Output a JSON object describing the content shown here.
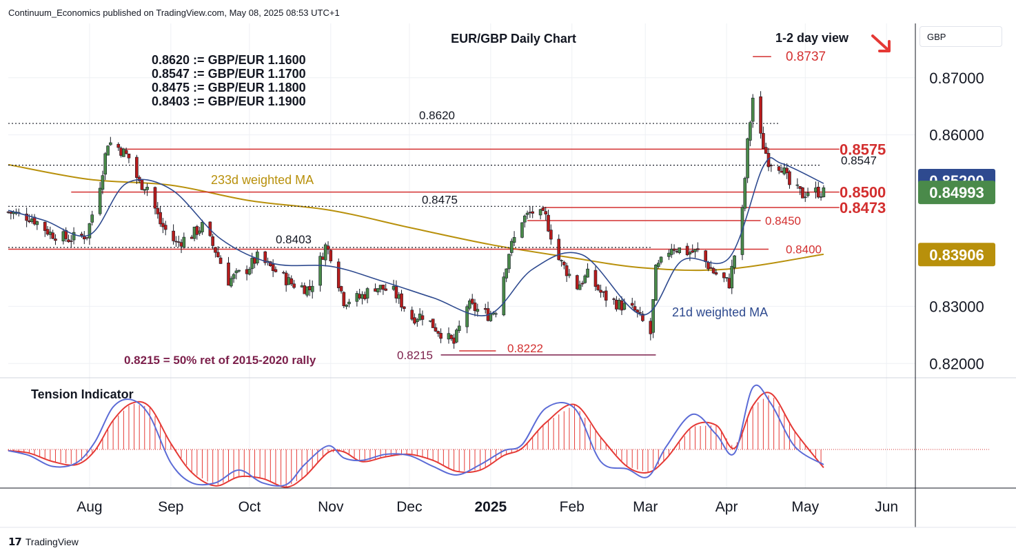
{
  "header": {
    "publisher_line": "Continuum_Economics published on TradingView.com, May 08, 2025 08:53 UTC+1"
  },
  "toolbar": {
    "currency_button": "GBP"
  },
  "footer": {
    "brand": "TradingView"
  },
  "colors": {
    "up_candle": "#4a8a4a",
    "down_candle": "#b71c1c",
    "ma21": "#2e4a8f",
    "ma233": "#b8900b",
    "support_resistance": "#d32f2f",
    "fib_line": "#7b1e4a",
    "tension_main": "#5b6bd6",
    "tension_signal": "#e53935"
  },
  "chart_data": [
    {
      "type": "candlestick",
      "title": "EUR/GBP Daily Chart",
      "view_label": "1-2 day view",
      "view_arrow": "down-right-arrow",
      "price_axis_unit": "GBP",
      "price_ticks": [
        "0.87000",
        "0.86000",
        "0.85200",
        "0.84993",
        "0.83906",
        "0.83000",
        "0.82000"
      ],
      "price_tick_values": [
        0.87,
        0.86,
        0.852,
        0.84993,
        0.83906,
        0.83,
        0.82
      ],
      "ylim": [
        0.8175,
        0.8795
      ],
      "time_ticks": [
        "Aug",
        "Sep",
        "Oct",
        "Nov",
        "Dec",
        "2025",
        "Feb",
        "Mar",
        "Apr",
        "May",
        "Jun"
      ],
      "time_range": [
        "2024-07-01",
        "2025-06-12"
      ],
      "price_badges": [
        {
          "label": "0.85200",
          "value": 0.852,
          "color": "#2e4a8f",
          "text_color": "#ffffff"
        },
        {
          "label": "0.84993",
          "value": 0.84993,
          "color": "#4a8a4a",
          "text_color": "#ffffff"
        },
        {
          "label": "0.83906",
          "value": 0.83906,
          "color": "#b8900b",
          "text_color": "#ffffff"
        }
      ],
      "conversions": [
        "0.8620 := GBP/EUR 1.1600",
        "0.8547 := GBP/EUR 1.1700",
        "0.8475 := GBP/EUR 1.1800",
        "0.8403 := GBP/EUR 1.1900"
      ],
      "levels": [
        {
          "label": "0.8620",
          "value": 0.862,
          "style": "dotted",
          "from": "2024-07-01",
          "to": "2025-04-21"
        },
        {
          "label": "0.8547",
          "value": 0.8547,
          "style": "dotted",
          "from": "2024-07-01",
          "to": "2025-05-07"
        },
        {
          "label": "0.8475",
          "value": 0.8475,
          "style": "dotted",
          "from": "2024-07-01",
          "to": "2025-01-21"
        },
        {
          "label": "0.8403",
          "value": 0.8403,
          "style": "dotted",
          "from": "2024-07-01",
          "to": "2025-03-03"
        },
        {
          "label": "0.8575",
          "value": 0.8575,
          "style": "solid",
          "from": "2024-08-14",
          "to": "2025-05-14"
        },
        {
          "label": "0.8500",
          "value": 0.85,
          "style": "solid",
          "from": "2024-07-25",
          "to": "2025-05-14"
        },
        {
          "label": "0.8473",
          "value": 0.8473,
          "style": "solid",
          "from": "2025-01-21",
          "to": "2025-05-14"
        },
        {
          "label": "0.8450",
          "value": 0.845,
          "style": "solid",
          "from": "2025-01-15",
          "to": "2025-04-14"
        },
        {
          "label": "0.8400",
          "value": 0.84,
          "style": "solid",
          "from": "2024-07-01",
          "to": "2025-04-17"
        },
        {
          "label": "0.8737",
          "value": 0.8737,
          "style": "solid",
          "from": "2025-04-11",
          "to": "2025-04-18"
        },
        {
          "label": "0.8222",
          "value": 0.8222,
          "style": "solid",
          "from": "2024-12-20",
          "to": "2025-01-03"
        },
        {
          "label": "0.8215",
          "value": 0.8215,
          "style": "fib",
          "from": "2024-12-13",
          "to": "2025-03-05"
        }
      ],
      "annotations": {
        "ma233_label": "233d weighted MA",
        "ma21_label": "21d weighted MA",
        "fib_note": "0.8215 = 50% ret of 2015-2020 rally"
      },
      "price_path_dates": [
        "2024-07-01",
        "2024-07-10",
        "2024-07-17",
        "2024-07-24",
        "2024-07-31",
        "2024-08-05",
        "2024-08-08",
        "2024-08-12",
        "2024-08-16",
        "2024-08-20",
        "2024-08-23",
        "2024-08-28",
        "2024-09-03",
        "2024-09-09",
        "2024-09-13",
        "2024-09-18",
        "2024-09-23",
        "2024-09-30",
        "2024-10-04",
        "2024-10-10",
        "2024-10-17",
        "2024-10-24",
        "2024-10-30",
        "2024-11-01",
        "2024-11-06",
        "2024-11-12",
        "2024-11-18",
        "2024-11-25",
        "2024-12-02",
        "2024-12-06",
        "2024-12-12",
        "2024-12-18",
        "2024-12-23",
        "2024-12-31",
        "2025-01-03",
        "2025-01-08",
        "2025-01-13",
        "2025-01-17",
        "2025-01-22",
        "2025-01-27",
        "2025-02-03",
        "2025-02-07",
        "2025-02-13",
        "2025-02-19",
        "2025-02-25",
        "2025-03-03",
        "2025-03-05",
        "2025-03-11",
        "2025-03-17",
        "2025-03-21",
        "2025-03-27",
        "2025-04-02",
        "2025-04-07",
        "2025-04-09",
        "2025-04-11",
        "2025-04-14",
        "2025-04-17",
        "2025-04-22",
        "2025-04-25",
        "2025-04-30",
        "2025-05-02",
        "2025-05-08"
      ],
      "price_path_values": [
        0.8465,
        0.8455,
        0.8428,
        0.8418,
        0.8425,
        0.8515,
        0.8588,
        0.8578,
        0.856,
        0.8515,
        0.851,
        0.8445,
        0.841,
        0.8425,
        0.844,
        0.8398,
        0.8345,
        0.8365,
        0.8385,
        0.8365,
        0.834,
        0.833,
        0.8405,
        0.839,
        0.831,
        0.8315,
        0.8335,
        0.8325,
        0.828,
        0.8285,
        0.8258,
        0.8235,
        0.8302,
        0.8285,
        0.8295,
        0.8395,
        0.8452,
        0.8465,
        0.8455,
        0.8382,
        0.8335,
        0.8355,
        0.8318,
        0.8303,
        0.8292,
        0.8252,
        0.8362,
        0.8405,
        0.8395,
        0.8395,
        0.836,
        0.834,
        0.8465,
        0.8585,
        0.8665,
        0.8595,
        0.8555,
        0.8545,
        0.8512,
        0.8495,
        0.8502,
        0.8499
      ],
      "ma21_dates": [
        "2024-07-01",
        "2024-07-15",
        "2024-08-01",
        "2024-08-15",
        "2024-09-01",
        "2024-09-20",
        "2024-10-10",
        "2024-11-01",
        "2024-11-20",
        "2024-12-10",
        "2024-12-31",
        "2025-01-17",
        "2025-02-05",
        "2025-02-28",
        "2025-03-15",
        "2025-04-02",
        "2025-04-15",
        "2025-04-22",
        "2025-05-08"
      ],
      "ma21_values": [
        0.8468,
        0.845,
        0.8425,
        0.8515,
        0.8505,
        0.8418,
        0.8375,
        0.837,
        0.8345,
        0.8315,
        0.8285,
        0.8365,
        0.839,
        0.8285,
        0.838,
        0.8385,
        0.8545,
        0.855,
        0.8515
      ],
      "ma233_dates": [
        "2024-07-01",
        "2024-08-01",
        "2024-09-01",
        "2024-10-01",
        "2024-11-01",
        "2024-12-01",
        "2025-01-01",
        "2025-02-01",
        "2025-03-01",
        "2025-04-01",
        "2025-05-08"
      ],
      "ma233_values": [
        0.8548,
        0.8522,
        0.8512,
        0.8485,
        0.8468,
        0.8438,
        0.8408,
        0.8385,
        0.8367,
        0.8365,
        0.8391
      ]
    },
    {
      "type": "line",
      "title": "Tension Indicator",
      "zero_line": true,
      "ylim": [
        -1,
        1
      ],
      "dates": [
        "2024-07-01",
        "2024-07-09",
        "2024-07-18",
        "2024-07-27",
        "2024-08-03",
        "2024-08-10",
        "2024-08-17",
        "2024-08-24",
        "2024-09-01",
        "2024-09-09",
        "2024-09-18",
        "2024-09-27",
        "2024-10-06",
        "2024-10-15",
        "2024-10-22",
        "2024-10-31",
        "2024-11-06",
        "2024-11-13",
        "2024-11-22",
        "2024-12-01",
        "2024-12-10",
        "2024-12-19",
        "2024-12-28",
        "2025-01-06",
        "2025-01-13",
        "2025-01-22",
        "2025-02-02",
        "2025-02-12",
        "2025-02-22",
        "2025-03-02",
        "2025-03-09",
        "2025-03-19",
        "2025-03-28",
        "2025-04-04",
        "2025-04-11",
        "2025-04-18",
        "2025-04-27",
        "2025-05-08"
      ],
      "main": [
        -0.02,
        -0.1,
        -0.28,
        -0.22,
        0.12,
        0.7,
        0.82,
        0.55,
        -0.22,
        -0.55,
        -0.55,
        -0.34,
        -0.55,
        -0.58,
        -0.25,
        0.06,
        -0.14,
        -0.18,
        -0.08,
        -0.1,
        -0.28,
        -0.42,
        -0.25,
        -0.02,
        0.08,
        0.68,
        0.68,
        -0.2,
        -0.32,
        -0.45,
        0.05,
        0.58,
        0.25,
        -0.06,
        1.02,
        0.75,
        0.05,
        -0.25
      ],
      "signal": [
        -0.02,
        -0.06,
        -0.2,
        -0.25,
        -0.02,
        0.48,
        0.76,
        0.7,
        0.1,
        -0.38,
        -0.6,
        -0.45,
        -0.48,
        -0.62,
        -0.45,
        -0.05,
        -0.04,
        -0.2,
        -0.12,
        -0.08,
        -0.18,
        -0.36,
        -0.34,
        -0.1,
        0.02,
        0.44,
        0.74,
        0.2,
        -0.28,
        -0.38,
        -0.15,
        0.38,
        0.4,
        0.02,
        0.72,
        0.92,
        0.3,
        -0.3
      ]
    }
  ]
}
